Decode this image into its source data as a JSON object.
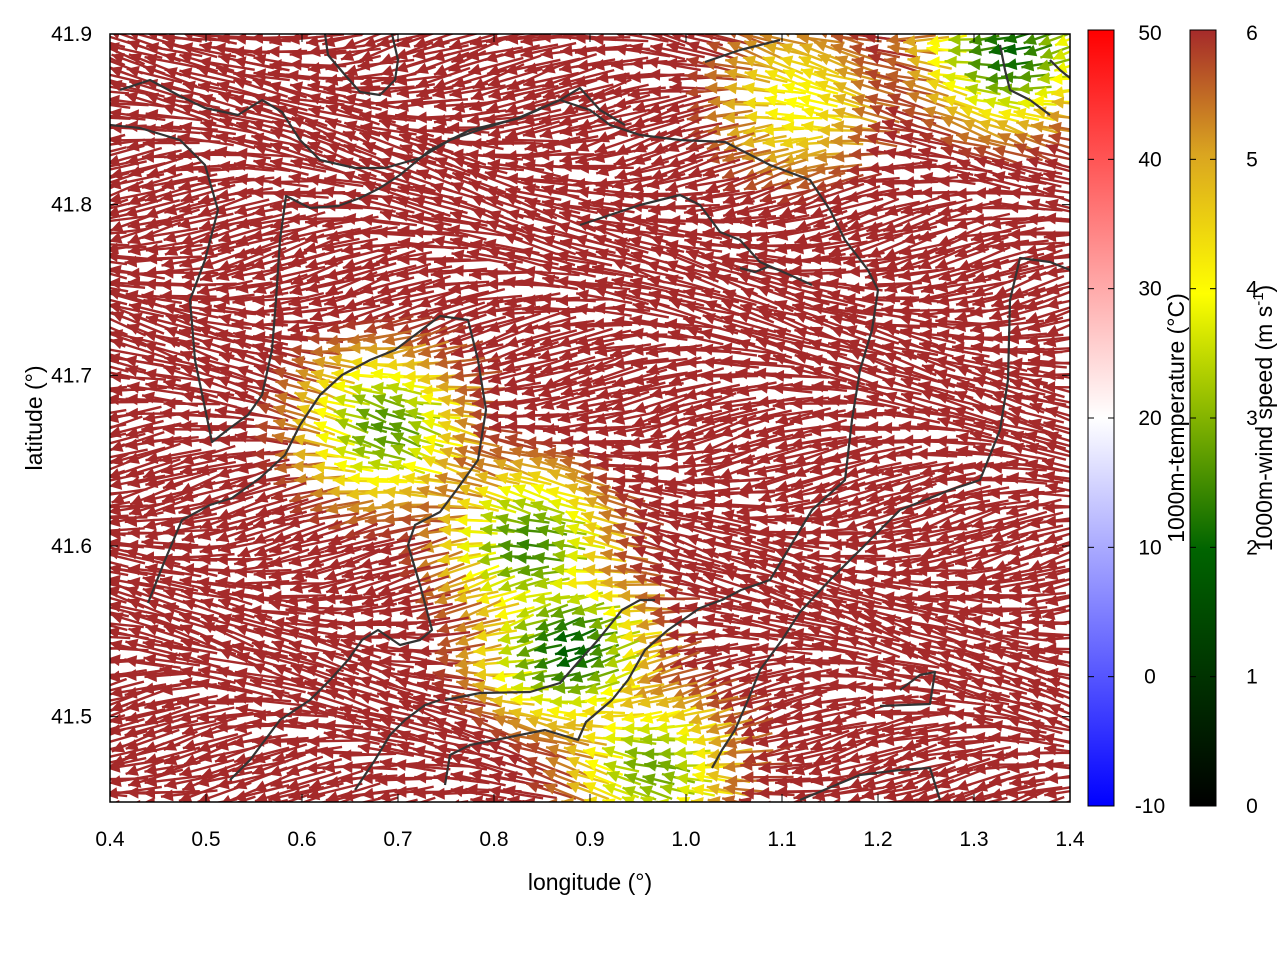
{
  "chart_data": {
    "type": "vector-field",
    "title": "",
    "xlabel": "longitude (°)",
    "ylabel": "latitude (°)",
    "xlim": [
      0.4,
      1.4
    ],
    "ylim": [
      41.45,
      41.9
    ],
    "xticks": [
      "0.4",
      "0.5",
      "0.6",
      "0.7",
      "0.8",
      "0.9",
      "1.0",
      "1.1",
      "1.2",
      "1.3",
      "1.4"
    ],
    "yticks": [
      "41.5",
      "41.6",
      "41.7",
      "41.8",
      "41.9"
    ],
    "grid": false,
    "colorbars": [
      {
        "label": "1000m-temperature (°C)",
        "range": [
          -10,
          50
        ],
        "ticks": [
          "-10",
          "0",
          "10",
          "20",
          "30",
          "40",
          "50"
        ],
        "colors": [
          "#0000ff",
          "#ffffff",
          "#ff0000"
        ]
      },
      {
        "label_main": "1000m-wind speed (m s",
        "label_sup": "-1",
        "label_end": ")",
        "range": [
          0,
          6
        ],
        "ticks": [
          "0",
          "1",
          "2",
          "3",
          "4",
          "5",
          "6"
        ],
        "colors": [
          "#000000",
          "#006400",
          "#ffff00",
          "#daa520",
          "#a52a2a"
        ]
      }
    ],
    "wind_field": {
      "direction": "westward (easterly wind)",
      "slow_zones": [
        {
          "lon": 0.69,
          "lat": 41.67,
          "speed": 2.6
        },
        {
          "lon": 0.84,
          "lat": 41.6,
          "speed": 2.4
        },
        {
          "lon": 0.88,
          "lat": 41.54,
          "speed": 1.9
        },
        {
          "lon": 0.97,
          "lat": 41.47,
          "speed": 2.8
        },
        {
          "lon": 1.34,
          "lat": 41.89,
          "speed": 2.0
        },
        {
          "lon": 1.12,
          "lat": 41.86,
          "speed": 4.0
        }
      ],
      "background_speed": 6
    }
  }
}
